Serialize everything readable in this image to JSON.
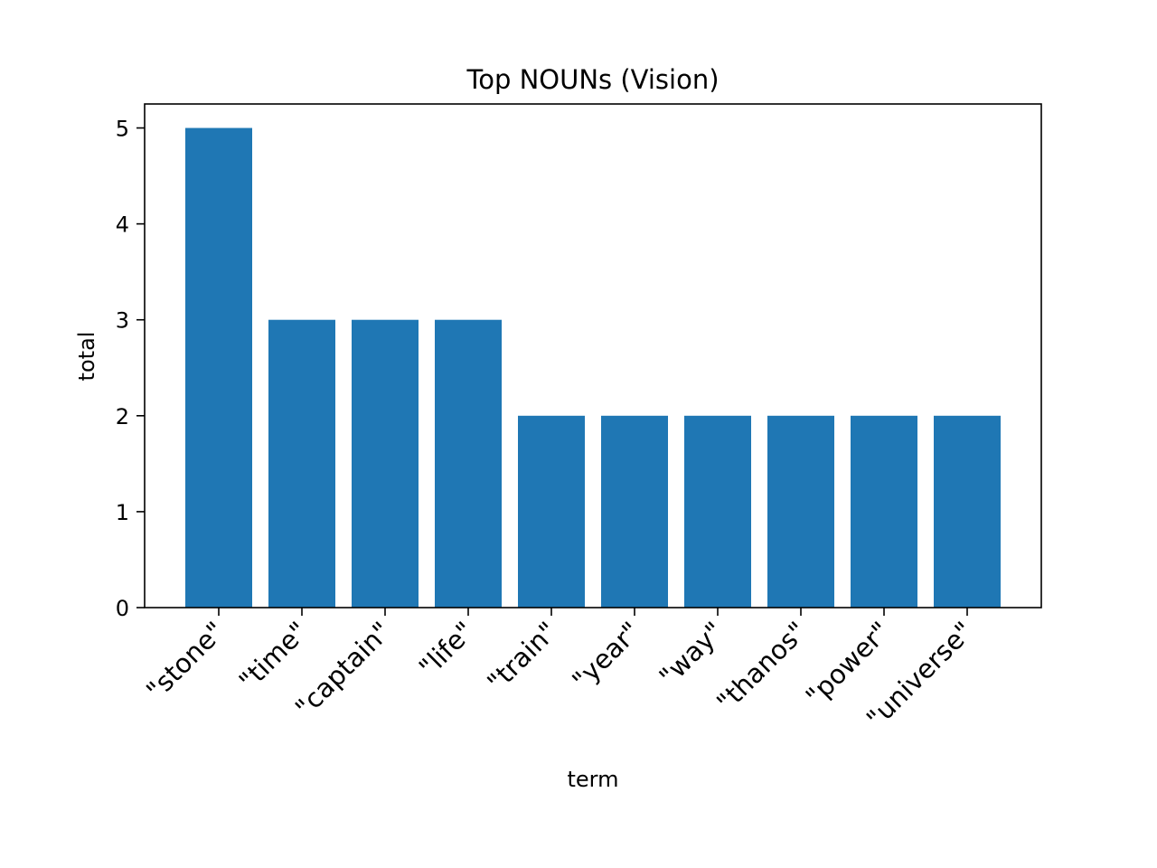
{
  "chart_data": {
    "type": "bar",
    "title": "Top NOUNs (Vision)",
    "xlabel": "term",
    "ylabel": "total",
    "categories": [
      "\"stone\"",
      "\"time\"",
      "\"captain\"",
      "\"life\"",
      "\"train\"",
      "\"year\"",
      "\"way\"",
      "\"thanos\"",
      "\"power\"",
      "\"universe\""
    ],
    "values": [
      5,
      3,
      3,
      3,
      2,
      2,
      2,
      2,
      2,
      2
    ],
    "ylim": [
      0,
      5.25
    ],
    "yticks": [
      "0",
      "1",
      "2",
      "3",
      "4",
      "5"
    ],
    "bar_color": "#1f77b4",
    "grid": false,
    "legend": "none"
  }
}
